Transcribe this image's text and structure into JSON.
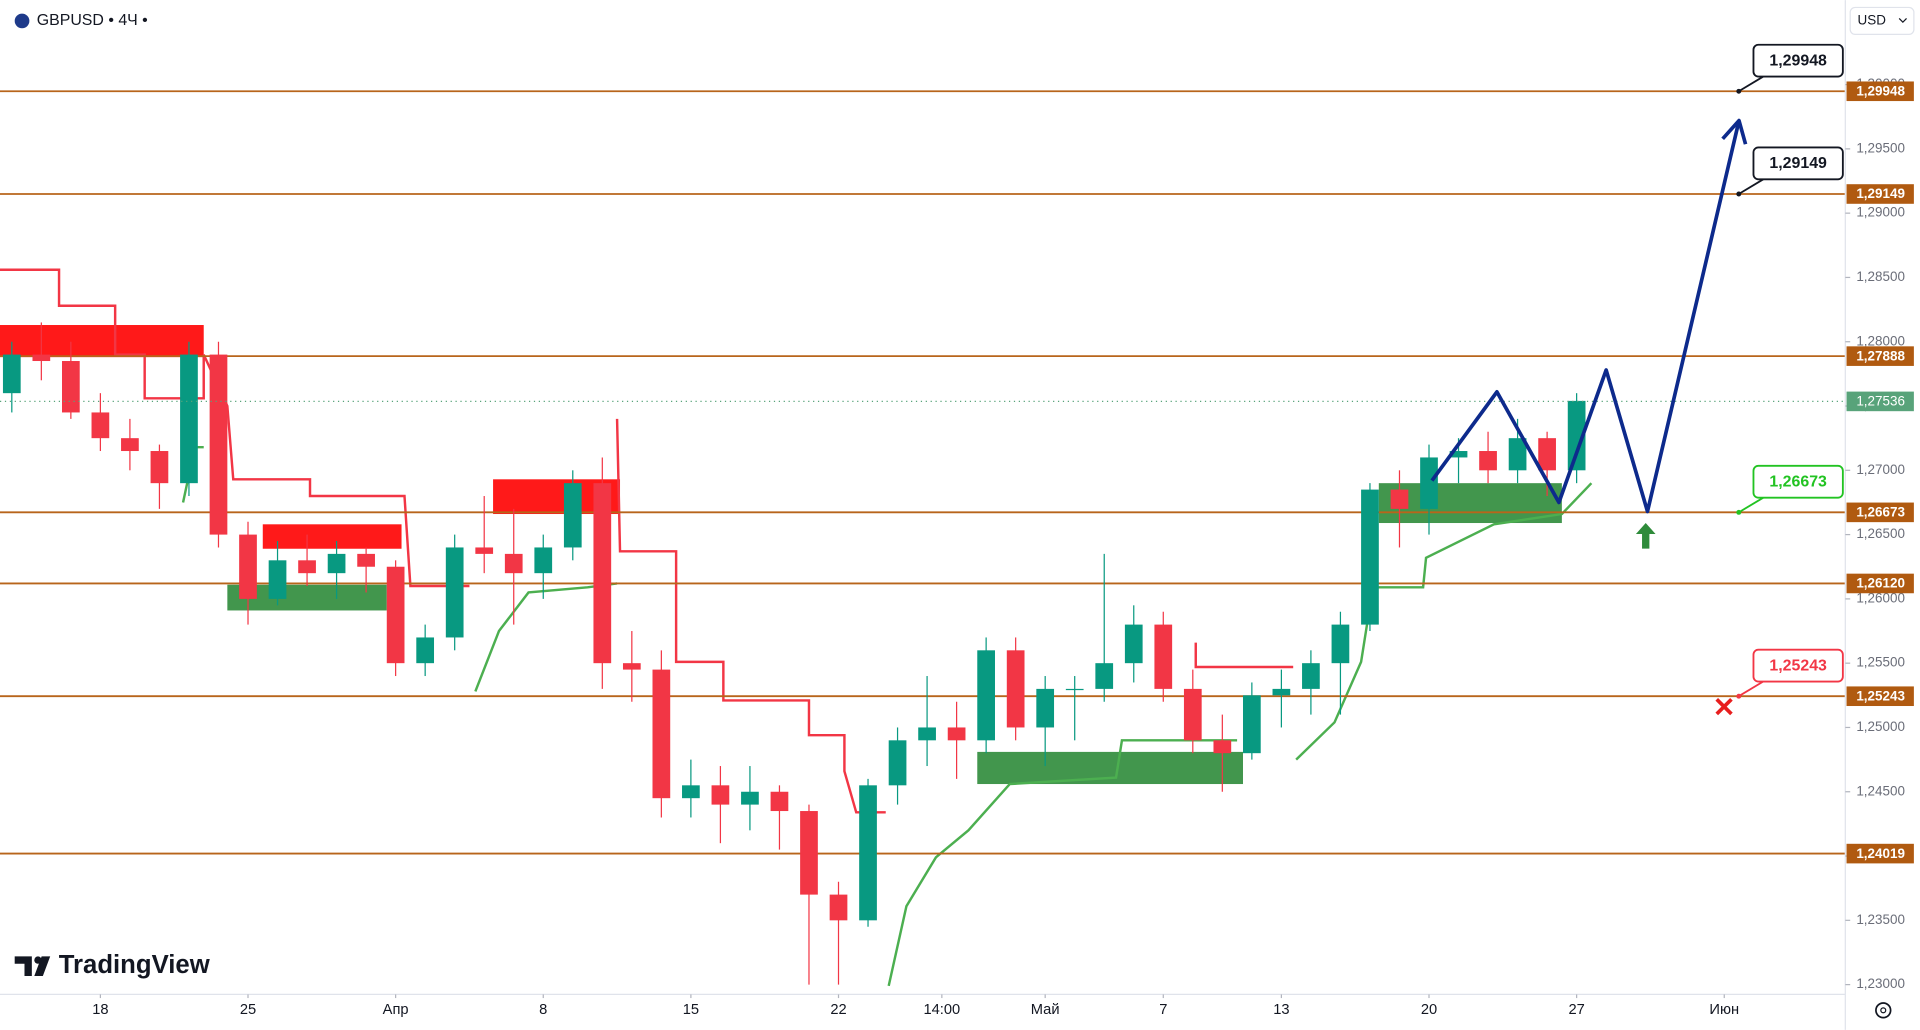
{
  "chart_data": {
    "type": "candlestick",
    "title": "GBPUSD • 4Ч •",
    "currency": "USD",
    "logo": "TradingView",
    "xlim": [
      -3.4,
      59.1
    ],
    "ylim": [
      1.22924,
      1.30657
    ],
    "xticks": [
      {
        "value": 0,
        "label": "18"
      },
      {
        "value": 5,
        "label": "25"
      },
      {
        "value": 10,
        "label": "Апр"
      },
      {
        "value": 15,
        "label": "8"
      },
      {
        "value": 20,
        "label": "15"
      },
      {
        "value": 25,
        "label": "22"
      },
      {
        "value": 28.5,
        "label": "14:00"
      },
      {
        "value": 32,
        "label": "Май"
      },
      {
        "value": 36,
        "label": "7"
      },
      {
        "value": 40,
        "label": "13"
      },
      {
        "value": 45,
        "label": "20"
      },
      {
        "value": 50,
        "label": "27"
      },
      {
        "value": 55,
        "label": "Июн"
      }
    ],
    "yticks": [
      {
        "value": 1.23,
        "label": "1,23000"
      },
      {
        "value": 1.235,
        "label": "1,23500"
      },
      {
        "value": 1.24,
        "label": "1,24000"
      },
      {
        "value": 1.245,
        "label": "1,24500"
      },
      {
        "value": 1.25,
        "label": "1,25000"
      },
      {
        "value": 1.255,
        "label": "1,25500"
      },
      {
        "value": 1.26,
        "label": "1,26000"
      },
      {
        "value": 1.265,
        "label": "1,26500"
      },
      {
        "value": 1.27,
        "label": "1,27000"
      },
      {
        "value": 1.275,
        "label": "1,27500"
      },
      {
        "value": 1.28,
        "label": "1,28000"
      },
      {
        "value": 1.285,
        "label": "1,28500"
      },
      {
        "value": 1.29,
        "label": "1,29000"
      },
      {
        "value": 1.295,
        "label": "1,29500"
      },
      {
        "value": 1.3,
        "label": "1,30000"
      }
    ],
    "up_color": "#089981",
    "down_color": "#f23645",
    "x": [
      -3,
      -2,
      -1,
      0,
      1,
      2,
      3,
      4,
      5,
      6,
      7,
      8,
      9,
      10,
      11,
      12,
      13,
      14,
      15,
      16,
      17,
      18,
      19,
      20,
      21,
      22,
      23,
      24,
      25,
      26,
      27,
      28,
      29,
      30,
      31,
      32,
      33,
      34,
      35,
      36,
      37,
      38,
      39,
      40,
      41,
      42,
      43,
      44,
      45,
      46,
      47,
      48,
      49,
      50
    ],
    "open": [
      1.276,
      1.279,
      1.2785,
      1.2745,
      1.2725,
      1.2715,
      1.269,
      1.279,
      1.265,
      1.26,
      1.263,
      1.262,
      1.2635,
      1.2625,
      1.255,
      1.257,
      1.264,
      1.2635,
      1.262,
      1.264,
      1.269,
      1.255,
      1.2545,
      1.2445,
      1.2455,
      1.244,
      1.245,
      1.2435,
      1.237,
      1.235,
      1.2455,
      1.249,
      1.25,
      1.249,
      1.256,
      1.25,
      1.253,
      1.253,
      1.255,
      1.258,
      1.253,
      1.249,
      1.248,
      1.2525,
      1.253,
      1.255,
      1.258,
      1.2685,
      1.267,
      1.271,
      1.2715,
      1.27,
      1.2725,
      1.27
    ],
    "high": [
      1.28,
      1.2815,
      1.28,
      1.276,
      1.274,
      1.272,
      1.28,
      1.28,
      1.266,
      1.2645,
      1.265,
      1.2645,
      1.264,
      1.263,
      1.258,
      1.265,
      1.268,
      1.267,
      1.265,
      1.27,
      1.271,
      1.2575,
      1.256,
      1.2475,
      1.247,
      1.247,
      1.2455,
      1.244,
      1.238,
      1.246,
      1.25,
      1.254,
      1.252,
      1.257,
      1.257,
      1.254,
      1.254,
      1.2635,
      1.2595,
      1.259,
      1.2545,
      1.251,
      1.2535,
      1.2545,
      1.256,
      1.259,
      1.269,
      1.27,
      1.272,
      1.2725,
      1.273,
      1.274,
      1.273,
      1.276
    ],
    "low": [
      1.2745,
      1.277,
      1.274,
      1.2715,
      1.27,
      1.267,
      1.268,
      1.264,
      1.258,
      1.2595,
      1.261,
      1.26,
      1.2605,
      1.254,
      1.254,
      1.256,
      1.262,
      1.258,
      1.26,
      1.263,
      1.253,
      1.252,
      1.243,
      1.243,
      1.241,
      1.242,
      1.2405,
      1.23,
      1.23,
      1.2345,
      1.244,
      1.247,
      1.246,
      1.248,
      1.249,
      1.247,
      1.249,
      1.252,
      1.2535,
      1.252,
      1.248,
      1.245,
      1.2475,
      1.25,
      1.251,
      1.251,
      1.2575,
      1.264,
      1.265,
      1.269,
      1.269,
      1.269,
      1.268,
      1.269
    ],
    "close": [
      1.279,
      1.2785,
      1.2745,
      1.2725,
      1.2715,
      1.269,
      1.279,
      1.265,
      1.26,
      1.263,
      1.262,
      1.2635,
      1.2625,
      1.255,
      1.257,
      1.264,
      1.2635,
      1.262,
      1.264,
      1.269,
      1.255,
      1.2545,
      1.2445,
      1.2455,
      1.244,
      1.245,
      1.2435,
      1.237,
      1.235,
      1.2455,
      1.249,
      1.25,
      1.249,
      1.256,
      1.25,
      1.253,
      1.253,
      1.255,
      1.258,
      1.253,
      1.249,
      1.248,
      1.2525,
      1.253,
      1.255,
      1.258,
      1.2685,
      1.267,
      1.271,
      1.2715,
      1.27,
      1.2725,
      1.27,
      1.2754
    ],
    "zones": [
      {
        "color": "#ff0000",
        "x": [
          -3.4,
          3.5
        ],
        "y": [
          1.2788,
          1.2813
        ]
      },
      {
        "color": "#ff0000",
        "x": [
          5.5,
          10.2
        ],
        "y": [
          1.2639,
          1.2658
        ]
      },
      {
        "color": "#2e8b3a",
        "x": [
          4.3,
          9.7
        ],
        "y": [
          1.2591,
          1.2611
        ]
      },
      {
        "color": "#ff0000",
        "x": [
          13.3,
          17.6
        ],
        "y": [
          1.2666,
          1.2693
        ]
      },
      {
        "color": "#2e8b3a",
        "x": [
          29.7,
          38.7
        ],
        "y": [
          1.2456,
          1.2481
        ]
      },
      {
        "color": "#2e8b3a",
        "x": [
          43.3,
          49.5
        ],
        "y": [
          1.2659,
          1.269
        ]
      }
    ],
    "bands": [
      {
        "color": "#f23645",
        "x": [
          -3.4,
          -1.4,
          -1.4,
          0.5,
          0.5,
          1.5,
          1.5,
          3.5,
          3.5,
          4.3,
          4.5,
          7.1,
          7.1,
          10.3,
          10.5,
          12.5
        ],
        "values": [
          1.2856,
          1.2856,
          1.2828,
          1.2828,
          1.279,
          1.279,
          1.2756,
          1.2756,
          1.279,
          1.275,
          1.2693,
          1.2693,
          1.268,
          1.268,
          1.261,
          1.261
        ]
      },
      {
        "color": "#f23645",
        "x": [
          17.5,
          17.6,
          19.5,
          19.5,
          21.1,
          21.1,
          24,
          24,
          25.2,
          25.2,
          25.6,
          26.6
        ],
        "values": [
          1.274,
          1.2637,
          1.2637,
          1.2551,
          1.2551,
          1.2521,
          1.2521,
          1.2494,
          1.2494,
          1.2466,
          1.2434,
          1.2434
        ]
      },
      {
        "color": "#f23645",
        "x": [
          37.1,
          37.1,
          40.4
        ],
        "values": [
          1.2566,
          1.2547,
          1.2547
        ]
      },
      {
        "color": "#4caf50",
        "x": [
          2.8,
          3.2,
          3.5
        ],
        "values": [
          1.2675,
          1.2718,
          1.2718
        ]
      },
      {
        "color": "#4caf50",
        "x": [
          12.7,
          13.5,
          14.5,
          16.5,
          17.5
        ],
        "values": [
          1.2528,
          1.2575,
          1.2605,
          1.2609,
          1.2612
        ]
      },
      {
        "color": "#4caf50",
        "x": [
          26.7,
          27.3,
          28.3,
          29.4,
          30.8,
          34.4,
          34.6,
          38.5
        ],
        "values": [
          1.2299,
          1.2361,
          1.2399,
          1.242,
          1.2456,
          1.2461,
          1.249,
          1.249
        ]
      },
      {
        "color": "#4caf50",
        "x": [
          40.5,
          41.8,
          42.7,
          43.1,
          44.8,
          44.9,
          47.2,
          49.5,
          50.5
        ],
        "values": [
          1.2475,
          1.2504,
          1.2551,
          1.2609,
          1.2609,
          1.2632,
          1.2658,
          1.2666,
          1.269
        ]
      }
    ],
    "projection": {
      "color": "#0d2a8c",
      "x": [
        45.1,
        47.3,
        49.4,
        51.0,
        52.4,
        55.5
      ],
      "values": [
        1.2692,
        1.2761,
        1.2675,
        1.2778,
        1.2668,
        1.2972
      ]
    },
    "level_color": "#b8651b",
    "levels": [
      {
        "value": 1.29948,
        "label": "1,29948",
        "callout": "#131722"
      },
      {
        "value": 1.29149,
        "label": "1,29149",
        "callout": "#131722"
      },
      {
        "value": 1.27888,
        "label": "1,27888"
      },
      {
        "value": 1.26673,
        "label": "1,26673",
        "callout": "#22c322"
      },
      {
        "value": 1.2612,
        "label": "1,26120"
      },
      {
        "value": 1.25243,
        "label": "1,25243",
        "callout": "#f23645"
      },
      {
        "value": 1.24019,
        "label": "1,24019"
      }
    ],
    "last_price": {
      "value": 1.27536,
      "label": "1,27536",
      "color": "#58a37a"
    }
  }
}
